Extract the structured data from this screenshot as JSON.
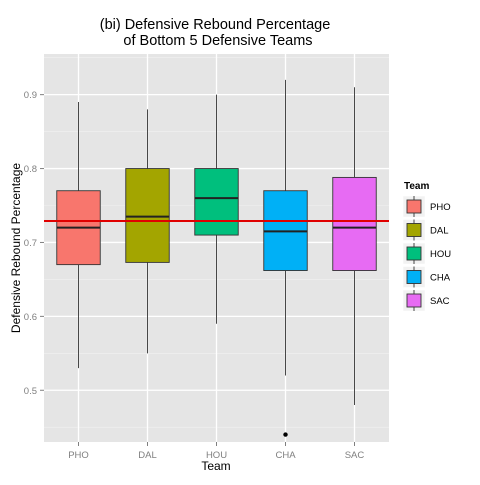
{
  "chart_data": {
    "type": "box",
    "title": "(bi) Defensive Rebound Percentage",
    "subtitle": "of Bottom 5 Defensive Teams",
    "xlabel": "Team",
    "ylabel": "Defensive Rebound Percentage",
    "ylim": [
      0.43,
      0.955
    ],
    "yticks": [
      0.5,
      0.6,
      0.7,
      0.8,
      0.9
    ],
    "ytick_labels": [
      "0.5",
      "0.6",
      "0.7",
      "0.8",
      "0.9"
    ],
    "grid": true,
    "legend_title": "Team",
    "legend_position": "right",
    "categories": [
      "PHO",
      "DAL",
      "HOU",
      "CHA",
      "SAC"
    ],
    "boxes": [
      {
        "name": "PHO",
        "color": "#F8766D",
        "whisker_low": 0.53,
        "q1": 0.67,
        "median": 0.72,
        "q3": 0.77,
        "whisker_high": 0.89,
        "outliers": []
      },
      {
        "name": "DAL",
        "color": "#A3A500",
        "whisker_low": 0.55,
        "q1": 0.673,
        "median": 0.735,
        "q3": 0.8,
        "whisker_high": 0.88,
        "outliers": []
      },
      {
        "name": "HOU",
        "color": "#00BF7D",
        "whisker_low": 0.59,
        "q1": 0.71,
        "median": 0.76,
        "q3": 0.8,
        "whisker_high": 0.9,
        "outliers": []
      },
      {
        "name": "CHA",
        "color": "#00B0F6",
        "whisker_low": 0.52,
        "q1": 0.662,
        "median": 0.715,
        "q3": 0.77,
        "whisker_high": 0.92,
        "outliers": [
          0.44
        ]
      },
      {
        "name": "SAC",
        "color": "#E76BF3",
        "whisker_low": 0.48,
        "q1": 0.662,
        "median": 0.72,
        "q3": 0.788,
        "whisker_high": 0.91,
        "outliers": []
      }
    ],
    "reference_line": {
      "y": 0.729,
      "color": "#E00000"
    }
  }
}
